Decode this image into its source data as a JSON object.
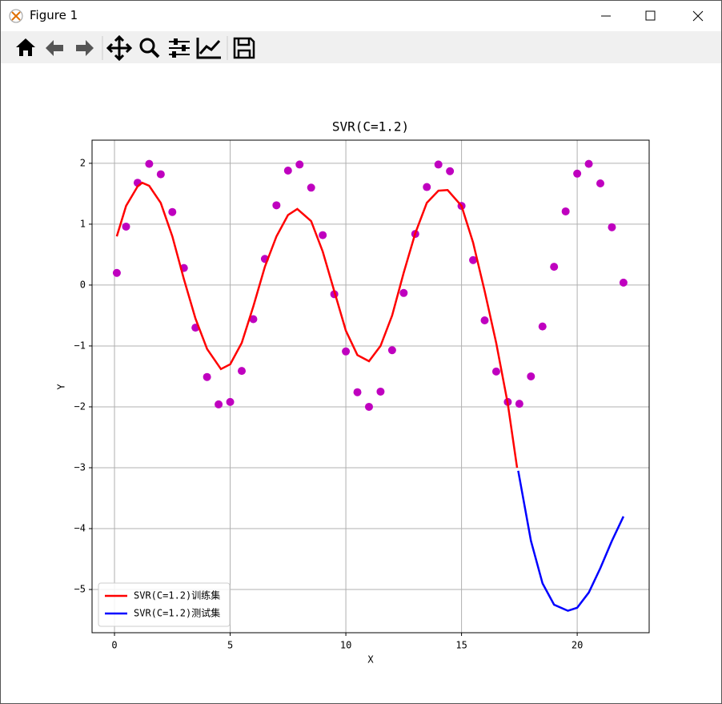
{
  "window": {
    "title": "Figure 1"
  },
  "chart_data": {
    "type": "line",
    "title": "SVR(C=1.2)",
    "xlabel": "X",
    "ylabel": "Y",
    "xlim": [
      -0.97,
      23.11
    ],
    "ylim": [
      -5.71,
      2.38
    ],
    "xticks": [
      0,
      5,
      10,
      15,
      20
    ],
    "yticks": [
      {
        "value": -5,
        "label": "−5"
      },
      {
        "value": -4,
        "label": "−4"
      },
      {
        "value": -3,
        "label": "−3"
      },
      {
        "value": -2,
        "label": "−2"
      },
      {
        "value": -1,
        "label": "−1"
      },
      0,
      1,
      2
    ],
    "grid": true,
    "legend": "lower left",
    "series": [
      {
        "type": "scatter",
        "color": "#bf00bf",
        "x": [
          0.1,
          0.5,
          1.0,
          1.5,
          2.0,
          2.5,
          3.0,
          3.5,
          4.0,
          4.5,
          5.0,
          5.5,
          6.0,
          6.5,
          7.0,
          7.5,
          8.0,
          8.5,
          9.0,
          9.5,
          10.0,
          10.5,
          11.0,
          11.5,
          12.0,
          12.5,
          13.0,
          13.5,
          14.0,
          14.5,
          15.0,
          15.5,
          16.0,
          16.5,
          17.0,
          17.5,
          18.0,
          18.5,
          19.0,
          19.5,
          20.0,
          20.5,
          21.0,
          21.5,
          22.0
        ],
        "values": [
          0.2,
          0.96,
          1.68,
          1.99,
          1.82,
          1.2,
          0.28,
          -0.7,
          -1.51,
          -1.96,
          -1.92,
          -1.41,
          -0.56,
          0.43,
          1.31,
          1.88,
          1.98,
          1.6,
          0.82,
          -0.15,
          -1.09,
          -1.76,
          -2.0,
          -1.75,
          -1.07,
          -0.13,
          0.84,
          1.61,
          1.98,
          1.87,
          1.3,
          0.41,
          -0.58,
          -1.42,
          -1.92,
          -1.95,
          -1.5,
          -0.68,
          0.3,
          1.21,
          1.83,
          1.99,
          1.67,
          0.95,
          0.04
        ]
      },
      {
        "type": "line",
        "name": "SVR(C=1.2)训练集",
        "color": "#ff0000",
        "x": [
          0.1,
          0.5,
          1.0,
          1.2,
          1.5,
          2.0,
          2.5,
          3.0,
          3.5,
          4.0,
          4.6,
          5.0,
          5.5,
          6.0,
          6.5,
          7.0,
          7.5,
          7.9,
          8.5,
          9.0,
          9.5,
          10.0,
          10.5,
          11.0,
          11.5,
          12.0,
          12.5,
          13.0,
          13.5,
          14.0,
          14.4,
          15.0,
          15.5,
          16.0,
          16.5,
          17.0,
          17.4
        ],
        "values": [
          0.8,
          1.3,
          1.62,
          1.68,
          1.63,
          1.35,
          0.8,
          0.1,
          -0.55,
          -1.05,
          -1.38,
          -1.3,
          -0.95,
          -0.35,
          0.3,
          0.8,
          1.15,
          1.25,
          1.05,
          0.55,
          -0.1,
          -0.75,
          -1.15,
          -1.25,
          -1.0,
          -0.5,
          0.2,
          0.85,
          1.35,
          1.55,
          1.56,
          1.3,
          0.7,
          -0.1,
          -0.95,
          -1.95,
          -3.0
        ]
      },
      {
        "type": "line",
        "name": "SVR(C=1.2)测试集",
        "color": "#0000ff",
        "x": [
          17.45,
          18.0,
          18.5,
          19.0,
          19.6,
          20.0,
          20.5,
          21.0,
          21.5,
          22.0
        ],
        "values": [
          -3.05,
          -4.2,
          -4.9,
          -5.25,
          -5.35,
          -5.3,
          -5.05,
          -4.65,
          -4.2,
          -3.8
        ]
      }
    ]
  }
}
